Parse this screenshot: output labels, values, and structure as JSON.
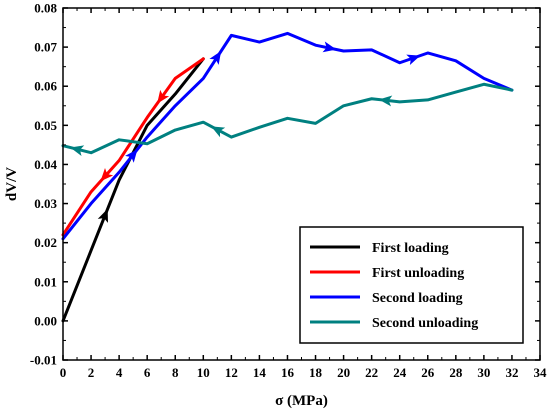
{
  "chart_data": {
    "type": "line",
    "xlabel": "σ (MPa)",
    "ylabel": "dV/V",
    "xlim": [
      0,
      34
    ],
    "ylim": [
      -0.01,
      0.08
    ],
    "xticks": [
      0,
      2,
      4,
      6,
      8,
      10,
      12,
      14,
      16,
      18,
      20,
      22,
      24,
      26,
      28,
      30,
      32,
      34
    ],
    "yticks": [
      -0.01,
      0.0,
      0.01,
      0.02,
      0.03,
      0.04,
      0.05,
      0.06,
      0.07,
      0.08
    ],
    "ytick_labels": [
      "-0.01",
      "0.00",
      "0.01",
      "0.02",
      "0.03",
      "0.04",
      "0.05",
      "0.06",
      "0.07",
      "0.08"
    ],
    "grid": false,
    "legend_position": "bottom-right",
    "series": [
      {
        "name": "First loading",
        "color": "#000000",
        "x": [
          0,
          2,
          4,
          6,
          8,
          10
        ],
        "y": [
          0.0,
          0.018,
          0.036,
          0.05,
          0.058,
          0.067
        ],
        "arrows": [
          1
        ]
      },
      {
        "name": "First unloading",
        "color": "#ff0000",
        "x": [
          10,
          8,
          6,
          4,
          2,
          0
        ],
        "y": [
          0.067,
          0.062,
          0.052,
          0.041,
          0.033,
          0.022
        ],
        "arrows": [
          1,
          3
        ]
      },
      {
        "name": "Second loading",
        "color": "#0000ff",
        "x": [
          0,
          2,
          4,
          6,
          8,
          10,
          12,
          14,
          16,
          18,
          20,
          22,
          24,
          26,
          28,
          30,
          32
        ],
        "y": [
          0.021,
          0.03,
          0.038,
          0.047,
          0.055,
          0.062,
          0.073,
          0.0713,
          0.0735,
          0.0705,
          0.069,
          0.0693,
          0.066,
          0.0685,
          0.0665,
          0.062,
          0.059
        ],
        "arrows": [
          2,
          5,
          9,
          12
        ]
      },
      {
        "name": "Second unloading",
        "color": "#008080",
        "x": [
          32,
          30,
          28,
          26,
          24,
          22,
          20,
          18,
          16,
          14,
          12,
          10,
          8,
          6,
          4,
          2,
          0
        ],
        "y": [
          0.059,
          0.0605,
          0.0585,
          0.0565,
          0.056,
          0.0568,
          0.055,
          0.0505,
          0.0518,
          0.0495,
          0.047,
          0.0508,
          0.0488,
          0.0453,
          0.0463,
          0.043,
          0.0448
        ],
        "arrows": [
          4,
          10,
          15
        ]
      }
    ]
  }
}
